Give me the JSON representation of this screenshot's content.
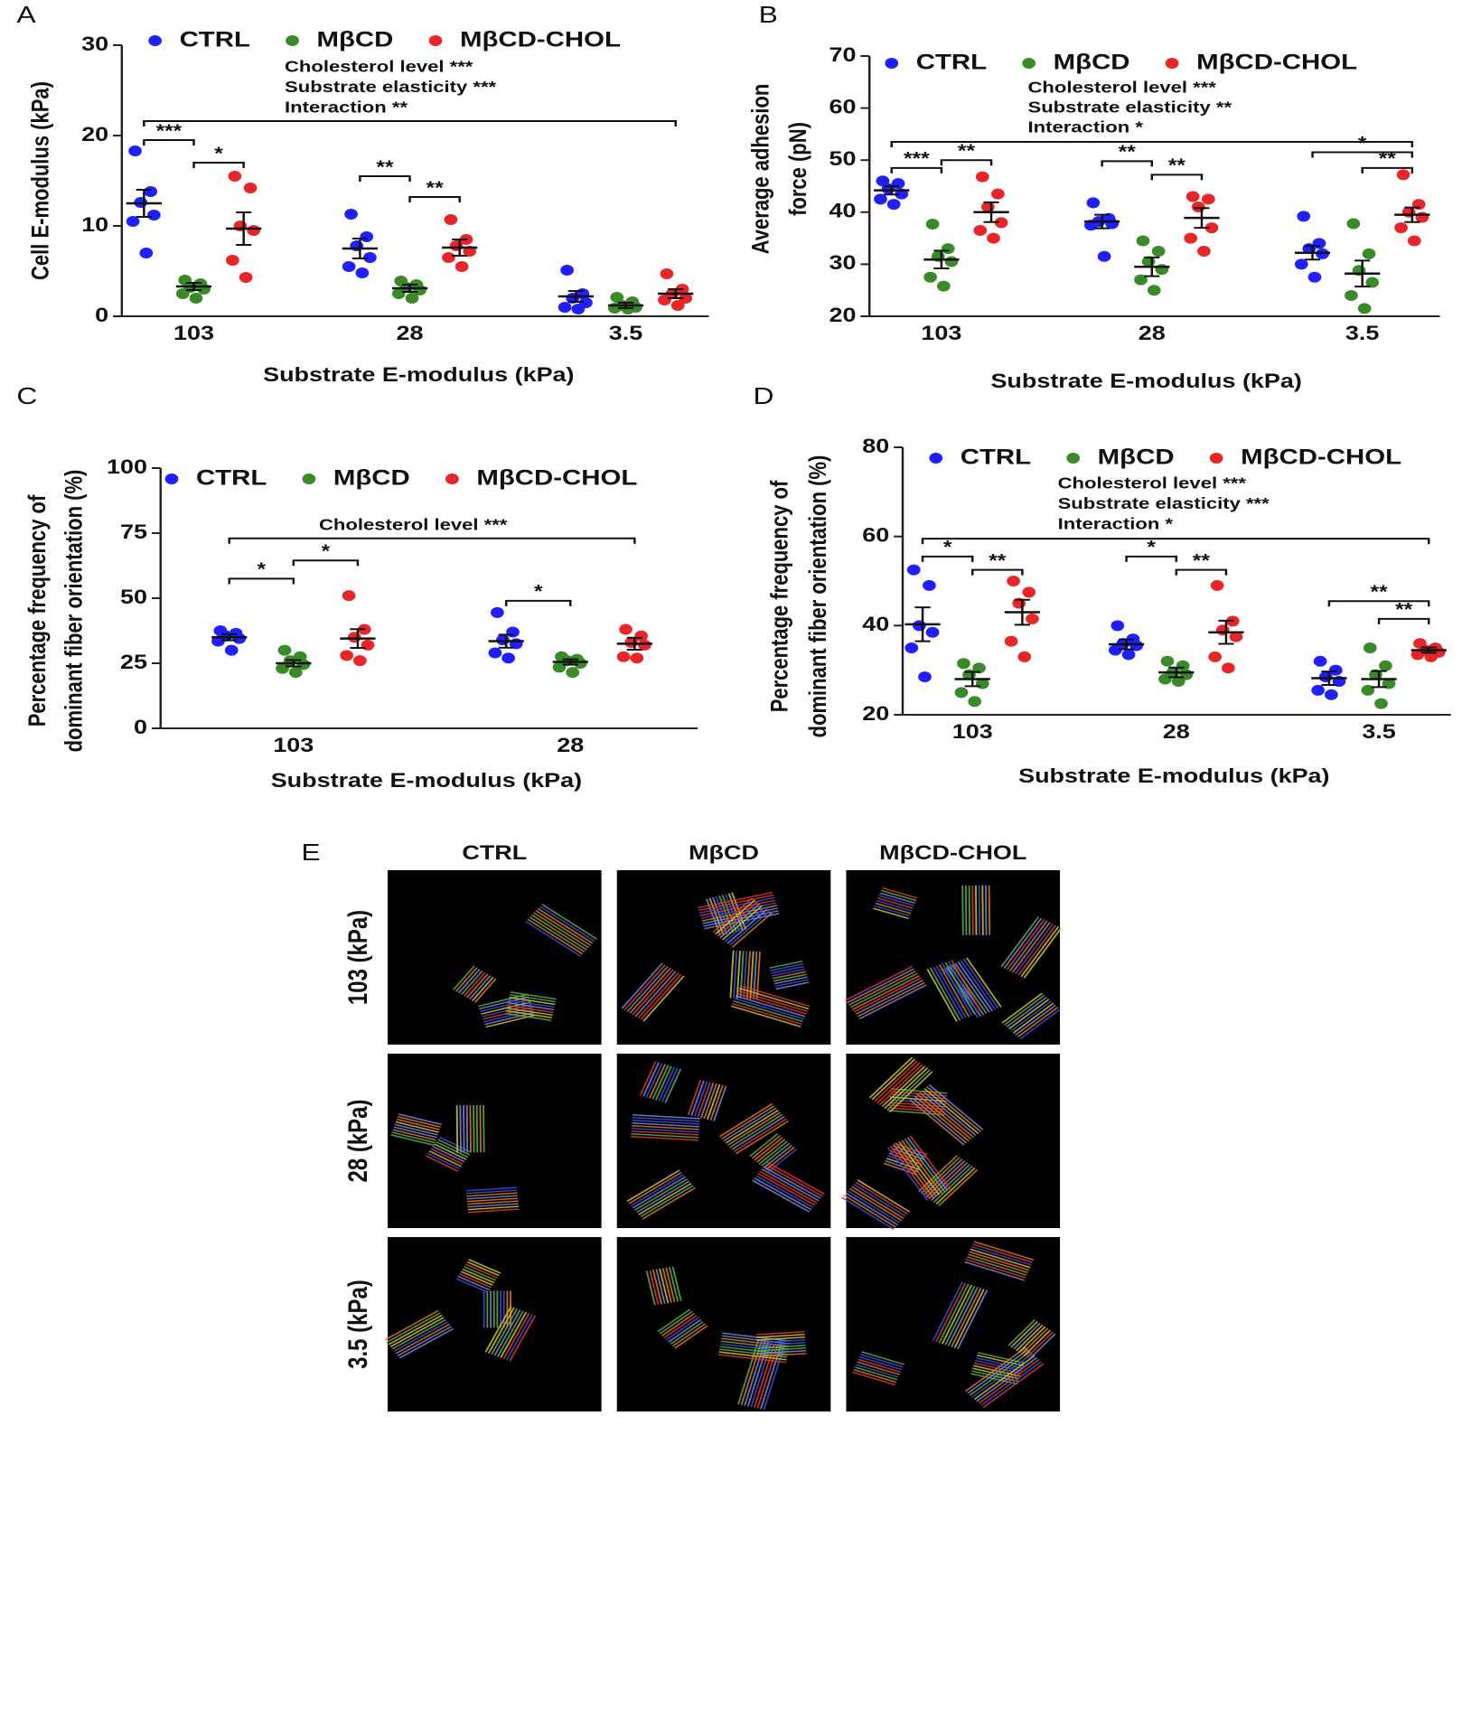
{
  "chart_data": [
    {
      "type": "scatter",
      "panel": "A",
      "ylabel": [
        "Cell E-modulus (kPa)"
      ],
      "xlabel": "Substrate E-modulus (kPa)",
      "categories": [
        "103",
        "28",
        "3.5"
      ],
      "ylim": [
        0,
        30
      ],
      "yticks": [
        0,
        10,
        20,
        30
      ],
      "series": [
        {
          "name": "CTRL",
          "color": "#1f1fff",
          "values": [
            12.5,
            7.5,
            2.2
          ],
          "errors": [
            1.5,
            1.1,
            0.6
          ],
          "points": [
            [
              18.3,
              13.8,
              12.6,
              11.2,
              10.5,
              7.0
            ],
            [
              11.3,
              8.8,
              7.8,
              6.5,
              5.5,
              4.8
            ],
            [
              5.1,
              2.5,
              2.0,
              1.5,
              1.0,
              0.8
            ]
          ]
        },
        {
          "name": "MβCD",
          "color": "#3a8a2a",
          "values": [
            3.3,
            3.1,
            1.2
          ],
          "errors": [
            0.4,
            0.4,
            0.3
          ],
          "points": [
            [
              4.0,
              3.6,
              3.2,
              3.0,
              2.5,
              2.0
            ],
            [
              3.9,
              3.5,
              3.2,
              2.9,
              2.5,
              2.0
            ],
            [
              2.1,
              1.6,
              1.2,
              1.0,
              0.9,
              0.8
            ]
          ]
        },
        {
          "name": "MβCD-CHOL",
          "color": "#e8262a",
          "values": [
            9.7,
            7.6,
            2.5
          ],
          "errors": [
            1.8,
            0.9,
            0.5
          ],
          "points": [
            [
              15.5,
              14.2,
              10.0,
              9.5,
              6.2,
              4.3
            ],
            [
              10.7,
              8.5,
              7.8,
              7.2,
              6.5,
              5.5
            ],
            [
              4.7,
              3.0,
              2.5,
              2.0,
              1.8,
              1.2
            ]
          ]
        }
      ],
      "stats": [
        "Cholesterol level  ***",
        "Substrate elasticity  ***",
        "Interaction  **"
      ],
      "brackets": [
        {
          "from": [
            0,
            0
          ],
          "to": [
            2,
            2
          ],
          "y": 21.6
        },
        {
          "label": "***",
          "from": [
            0,
            0
          ],
          "to": [
            1,
            0
          ],
          "y": 19.5
        },
        {
          "label": "*",
          "from": [
            1,
            0
          ],
          "to": [
            2,
            0
          ],
          "y": 17
        },
        {
          "label": "**",
          "from": [
            0,
            1
          ],
          "to": [
            1,
            1
          ],
          "y": 15.5
        },
        {
          "label": "**",
          "from": [
            1,
            1
          ],
          "to": [
            2,
            1
          ],
          "y": 13.2
        }
      ]
    },
    {
      "type": "scatter",
      "panel": "B",
      "ylabel": [
        "Average adhesion",
        "force (pN)"
      ],
      "xlabel": "Substrate E-modulus (kPa)",
      "categories": [
        "103",
        "28",
        "3.5"
      ],
      "ylim": [
        20,
        70
      ],
      "yticks": [
        20,
        30,
        40,
        50,
        60,
        70
      ],
      "series": [
        {
          "name": "CTRL",
          "color": "#1f1fff",
          "values": [
            44.2,
            38.2,
            32.2
          ],
          "errors": [
            0.8,
            1.3,
            1.3
          ],
          "points": [
            [
              46,
              45.5,
              44.5,
              43.5,
              42.5,
              41.5
            ],
            [
              41.8,
              38.8,
              38.2,
              37.8,
              37.5,
              31.5
            ],
            [
              39.2,
              34.0,
              33.0,
              32.0,
              30.0,
              27.5
            ]
          ]
        },
        {
          "name": "MβCD",
          "color": "#3a8a2a",
          "values": [
            30.9,
            29.5,
            28.2
          ],
          "errors": [
            1.7,
            1.8,
            2.5
          ],
          "points": [
            [
              37.7,
              33,
              31.5,
              30.5,
              27.5,
              25.8
            ],
            [
              34.5,
              32.5,
              30.5,
              29.0,
              27.0,
              25.0
            ],
            [
              37.8,
              32.0,
              28.8,
              26.5,
              24.0,
              21.5
            ]
          ]
        },
        {
          "name": "MβCD-CHOL",
          "color": "#e8262a",
          "values": [
            40,
            38.9,
            39.5
          ],
          "errors": [
            1.9,
            1.9,
            1.4
          ],
          "points": [
            [
              46.8,
              43.5,
              41.0,
              38.0,
              36.5,
              35.0
            ],
            [
              43,
              42.5,
              41.0,
              37.0,
              35.0,
              32.5
            ],
            [
              47.2,
              41.5,
              40.0,
              39.0,
              37.0,
              34.5
            ]
          ]
        }
      ],
      "stats": [
        "Cholesterol level  ***",
        "Substrate elasticity  **",
        "Interaction  *"
      ],
      "brackets": [
        {
          "from": [
            0,
            0
          ],
          "to": [
            2,
            2
          ],
          "y": 53.5
        },
        {
          "label": "***",
          "from": [
            0,
            0
          ],
          "to": [
            1,
            0
          ],
          "y": 48.5
        },
        {
          "label": "**",
          "from": [
            1,
            0
          ],
          "to": [
            2,
            0
          ],
          "y": 50
        },
        {
          "label": "**",
          "from": [
            0,
            1
          ],
          "to": [
            1,
            1
          ],
          "y": 49.8
        },
        {
          "label": "**",
          "from": [
            1,
            1
          ],
          "to": [
            2,
            1
          ],
          "y": 47.2
        },
        {
          "label": "*",
          "from": [
            0,
            2
          ],
          "to": [
            2,
            2
          ],
          "y": 51.5
        },
        {
          "label": "**",
          "from": [
            1,
            2
          ],
          "to": [
            2,
            2
          ],
          "y": 48.5
        }
      ]
    },
    {
      "type": "scatter",
      "panel": "C",
      "ylabel": [
        "Percentage frequency of",
        "dominant fiber orientation (%)"
      ],
      "xlabel": "Substrate E-modulus (kPa)",
      "categories": [
        "103",
        "28"
      ],
      "ylim": [
        0,
        100
      ],
      "yticks": [
        0,
        25,
        50,
        75,
        100
      ],
      "series": [
        {
          "name": "CTRL",
          "color": "#1f1fff",
          "values": [
            35,
            33.5
          ],
          "errors": [
            1.2,
            2.5
          ],
          "points": [
            [
              37.5,
              36.5,
              35.5,
              34.5,
              33.5,
              30
            ],
            [
              44.5,
              37.0,
              34.0,
              32.5,
              29.0,
              27.0
            ]
          ]
        },
        {
          "name": "MβCD",
          "color": "#3a8a2a",
          "values": [
            25,
            25.5
          ],
          "errors": [
            1.2,
            1.0
          ],
          "points": [
            [
              30.0,
              27.5,
              26.0,
              24.5,
              23.0,
              21.5
            ],
            [
              27.5,
              26.5,
              26.0,
              25.0,
              23.5,
              21.5
            ]
          ]
        },
        {
          "name": "MβCD-CHOL",
          "color": "#e8262a",
          "values": [
            34.5,
            32.5
          ],
          "errors": [
            3.6,
            2.3
          ],
          "points": [
            [
              51.0,
              38.0,
              35.0,
              32.0,
              28.0,
              26.0
            ],
            [
              38.0,
              35.5,
              33.0,
              32.0,
              27.5,
              27.0
            ]
          ]
        }
      ],
      "stats": [
        "Cholesterol level  ***"
      ],
      "brackets": [
        {
          "from": [
            0,
            0
          ],
          "to": [
            2,
            1
          ],
          "y": 73
        },
        {
          "label": "*",
          "from": [
            0,
            0
          ],
          "to": [
            1,
            0
          ],
          "y": 57.5
        },
        {
          "label": "*",
          "from": [
            1,
            0
          ],
          "to": [
            2,
            0
          ],
          "y": 64.5
        },
        {
          "label": "*",
          "from": [
            0,
            1
          ],
          "to": [
            1,
            1
          ],
          "y": 49
        }
      ]
    },
    {
      "type": "scatter",
      "panel": "D",
      "ylabel": [
        "Percentage frequency of",
        "dominant fiber orientation (%)"
      ],
      "xlabel": "Substrate E-modulus (kPa)",
      "categories": [
        "103",
        "28",
        "3.5"
      ],
      "ylim": [
        20,
        80
      ],
      "yticks": [
        20,
        40,
        60,
        80
      ],
      "series": [
        {
          "name": "CTRL",
          "color": "#1f1fff",
          "values": [
            40.3,
            35.8,
            28.2
          ],
          "errors": [
            3.8,
            1.1,
            1.5
          ],
          "points": [
            [
              52.5,
              49.0,
              40.0,
              38.5,
              35.0,
              28.5
            ],
            [
              40.0,
              37.0,
              36.0,
              35.5,
              34.5,
              33.5
            ],
            [
              32.0,
              30.0,
              28.5,
              27.5,
              25.5,
              24.5
            ]
          ]
        },
        {
          "name": "MβCD",
          "color": "#3a8a2a",
          "values": [
            28,
            29.5,
            28
          ],
          "errors": [
            1.6,
            1.1,
            1.8
          ],
          "points": [
            [
              31.5,
              30.5,
              29.0,
              27.0,
              25.0,
              23.0
            ],
            [
              32.0,
              31.0,
              29.5,
              29.0,
              28.0,
              27.5
            ],
            [
              35.0,
              31.0,
              29.0,
              27.0,
              25.5,
              22.5
            ]
          ]
        },
        {
          "name": "MβCD-CHOL",
          "color": "#e8262a",
          "values": [
            43,
            38.5,
            34.5
          ],
          "errors": [
            2.8,
            2.6,
            0.6
          ],
          "points": [
            [
              50.0,
              47.5,
              45.0,
              41.5,
              36.5,
              33.0
            ],
            [
              49.0,
              41.0,
              39.0,
              37.5,
              33.0,
              30.5
            ],
            [
              36.0,
              35.0,
              34.5,
              34.0,
              33.5,
              33.0
            ]
          ]
        }
      ],
      "stats": [
        "Cholesterol level  ***",
        "Substrate elasticity  ***",
        "Interaction  *"
      ],
      "brackets": [
        {
          "from": [
            0,
            0
          ],
          "to": [
            2,
            2
          ],
          "y": 59.5
        },
        {
          "label": "*",
          "from": [
            0,
            0
          ],
          "to": [
            1,
            0
          ],
          "y": 55.5
        },
        {
          "label": "**",
          "from": [
            1,
            0
          ],
          "to": [
            2,
            0
          ],
          "y": 52.5
        },
        {
          "label": "*",
          "from": [
            0,
            1
          ],
          "to": [
            1,
            1
          ],
          "y": 55.5
        },
        {
          "label": "**",
          "from": [
            1,
            1
          ],
          "to": [
            2,
            1
          ],
          "y": 52.5
        },
        {
          "label": "**",
          "from": [
            0,
            2
          ],
          "to": [
            2,
            2
          ],
          "y": 45.5
        },
        {
          "label": "**",
          "from": [
            1,
            2
          ],
          "to": [
            2,
            2
          ],
          "y": 41.5
        }
      ]
    }
  ],
  "image_grid": {
    "panel": "E",
    "columns": [
      "CTRL",
      "MβCD",
      "MβCD-CHOL"
    ],
    "rows": [
      "103 (kPa)",
      "28 (kPa)",
      "3.5 (kPa)"
    ]
  }
}
